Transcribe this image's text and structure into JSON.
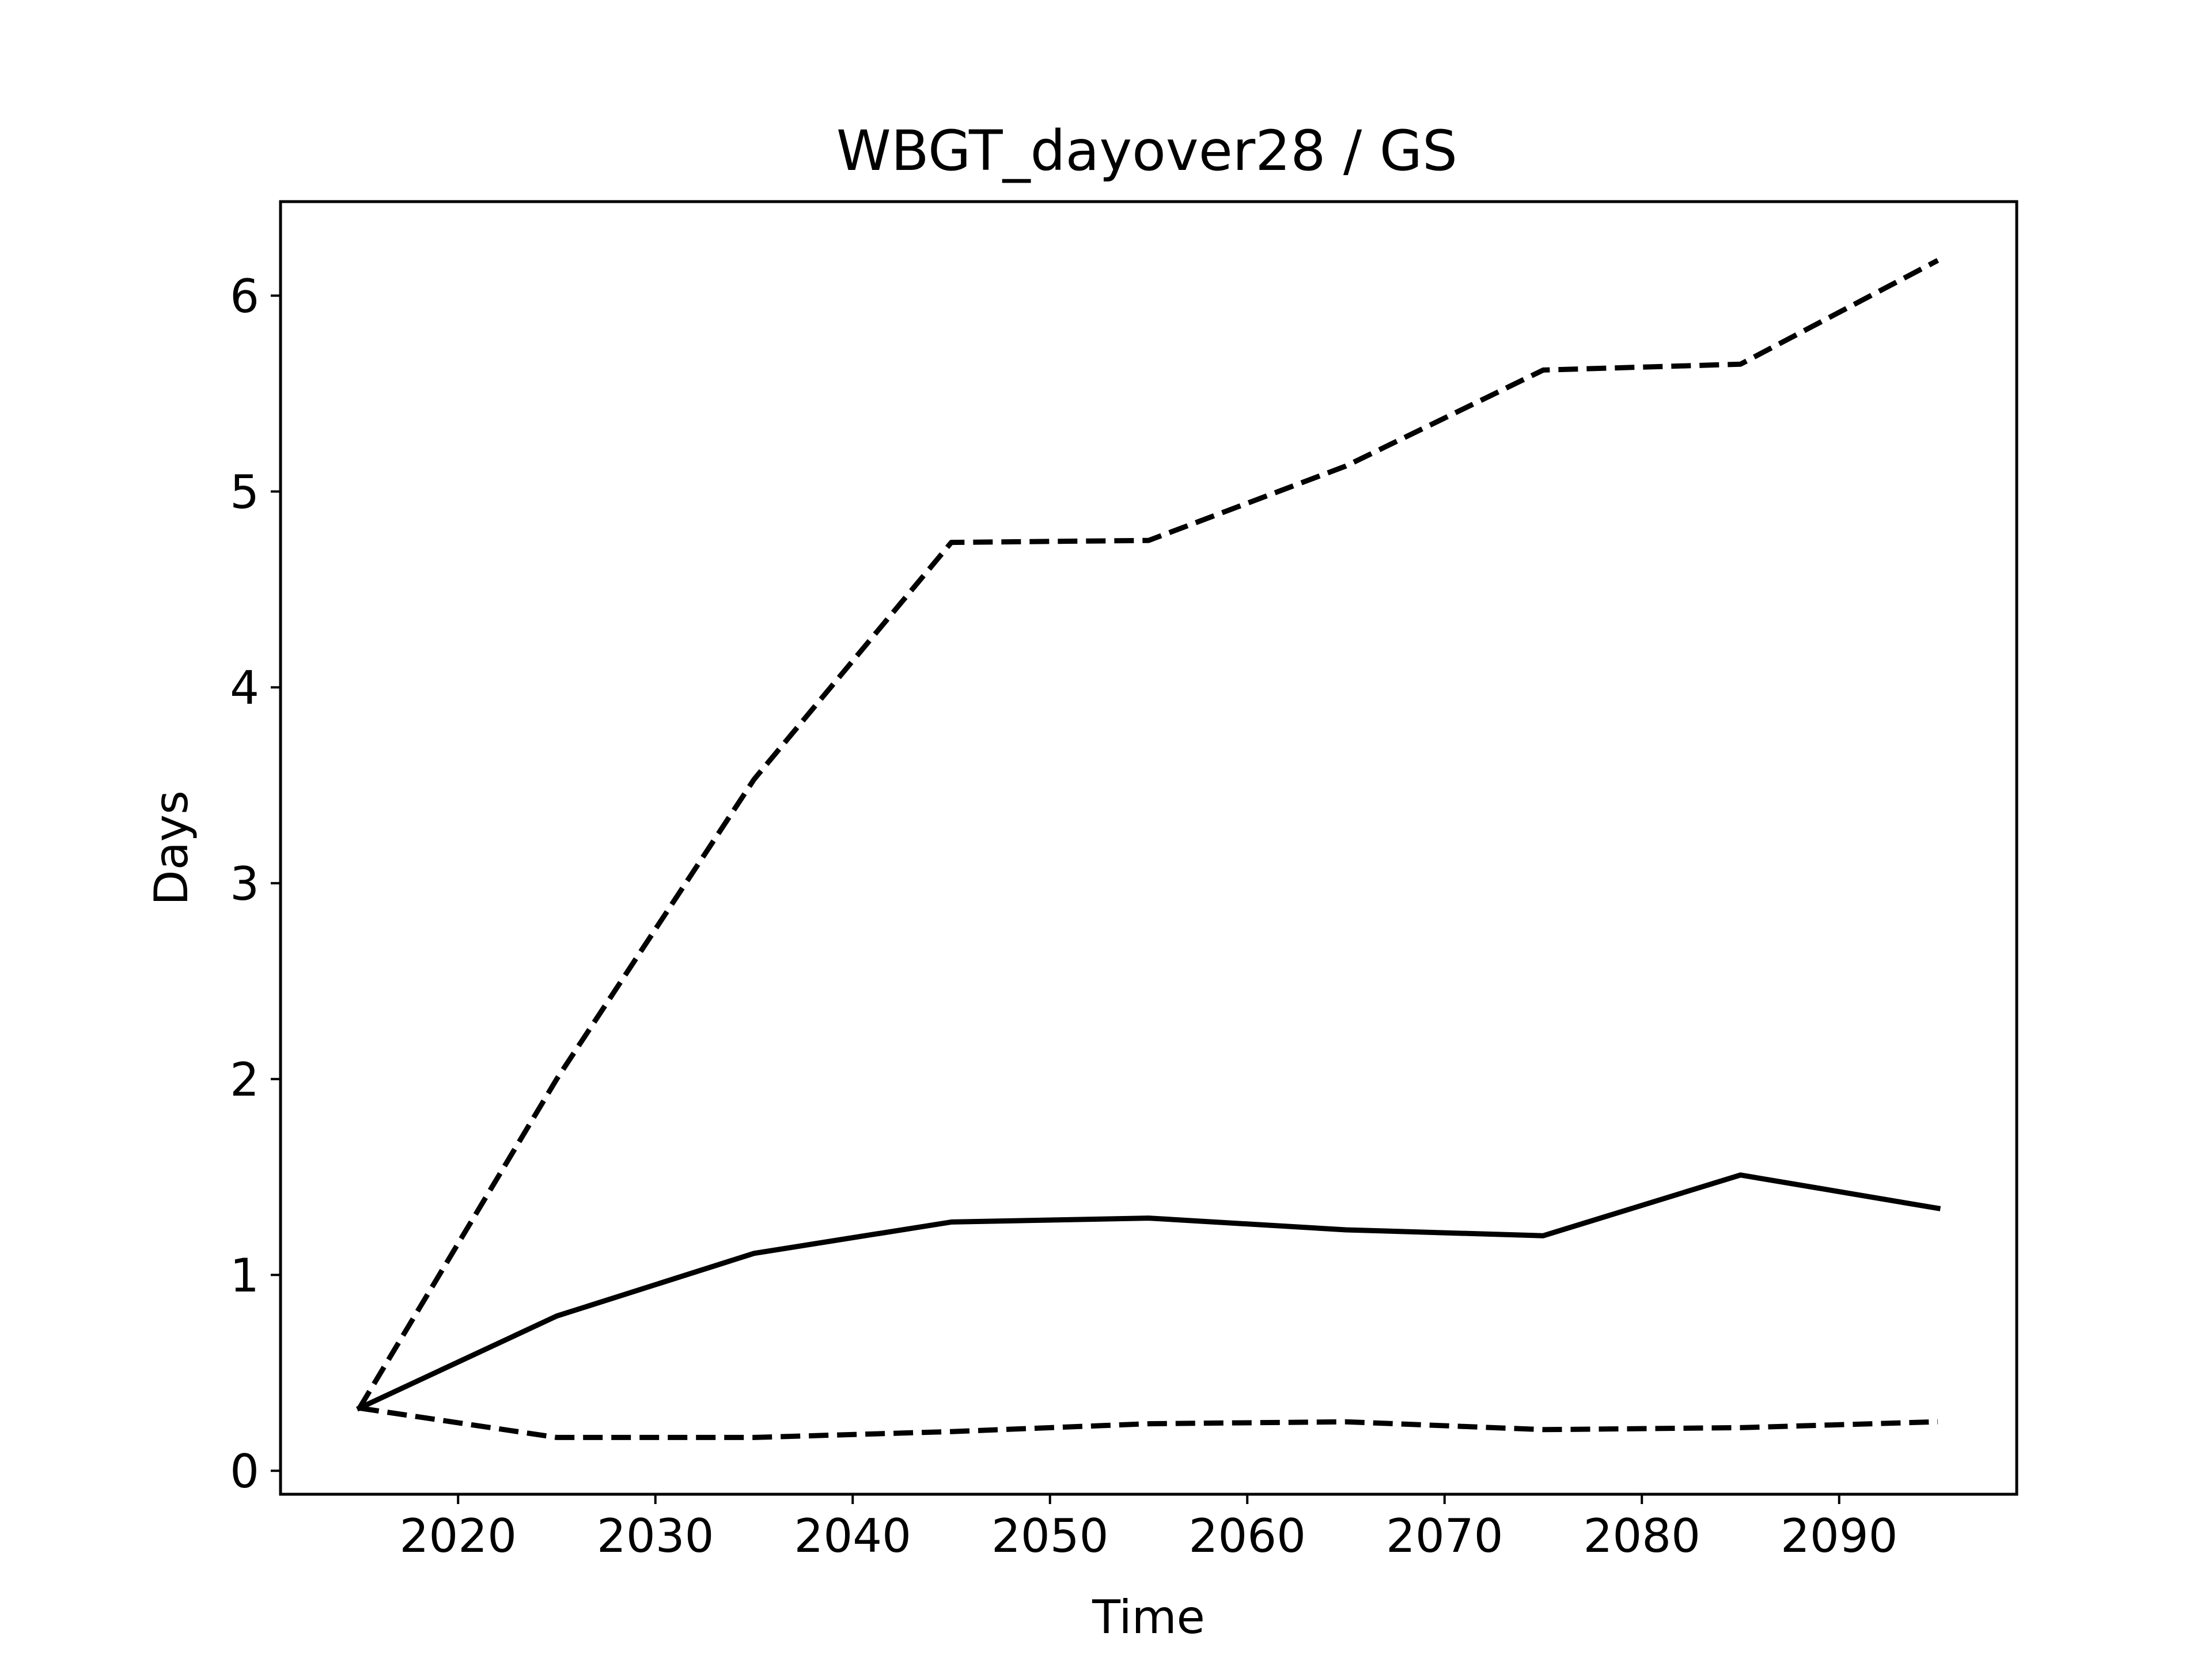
{
  "chart_data": {
    "type": "line",
    "title": "WBGT_dayover28 / GS",
    "xlabel": "Time",
    "ylabel": "Days",
    "xlim": [
      2011,
      2099
    ],
    "ylim": [
      -0.12,
      6.48
    ],
    "xticks": [
      2020,
      2030,
      2040,
      2050,
      2060,
      2070,
      2080,
      2090
    ],
    "yticks": [
      0,
      1,
      2,
      3,
      4,
      5,
      6
    ],
    "grid": false,
    "legend": "none",
    "line_color": "#000000",
    "x": [
      2015,
      2025,
      2035,
      2045,
      2055,
      2065,
      2075,
      2085,
      2095
    ],
    "series": [
      {
        "style": "solid",
        "values": [
          0.32,
          0.79,
          1.11,
          1.27,
          1.29,
          1.23,
          1.2,
          1.51,
          1.34
        ]
      },
      {
        "style": "dashed",
        "values": [
          0.32,
          2.0,
          3.53,
          4.74,
          4.75,
          5.13,
          5.62,
          5.65,
          6.18
        ]
      },
      {
        "style": "dashed",
        "values": [
          0.32,
          0.17,
          0.17,
          0.2,
          0.24,
          0.25,
          0.21,
          0.22,
          0.25
        ]
      }
    ]
  }
}
